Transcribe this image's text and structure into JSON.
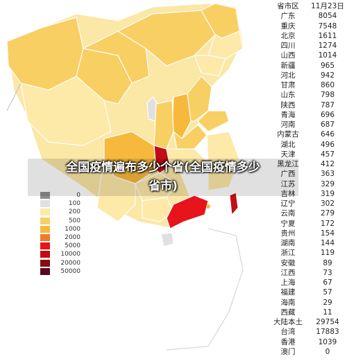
{
  "overlay": {
    "title_line1": "全国疫情遍布多少个省(全国疫情多少",
    "title_line2": "省市)"
  },
  "legend": {
    "items": [
      {
        "label": "0",
        "color": "#8c8c8c"
      },
      {
        "label": "100",
        "color": "#e0e0e0"
      },
      {
        "label": "200",
        "color": "#fde9a8"
      },
      {
        "label": "500",
        "color": "#f7d068"
      },
      {
        "label": "1000",
        "color": "#f6b93b"
      },
      {
        "label": "2000",
        "color": "#ee7d26"
      },
      {
        "label": "5000",
        "color": "#e8141b"
      },
      {
        "label": "10000",
        "color": "#c20d14"
      },
      {
        "label": "20000",
        "color": "#8b0a0f"
      },
      {
        "label": "50000",
        "color": "#5a0621"
      }
    ]
  },
  "table": {
    "header": {
      "name": "省市区",
      "value": "11月23日"
    },
    "rows": [
      {
        "name": "广东",
        "value": "8054"
      },
      {
        "name": "重庆",
        "value": "7548"
      },
      {
        "name": "北京",
        "value": "1611"
      },
      {
        "name": "四川",
        "value": "1274"
      },
      {
        "name": "山西",
        "value": "1014"
      },
      {
        "name": "新疆",
        "value": "965"
      },
      {
        "name": "河北",
        "value": "942"
      },
      {
        "name": "甘肃",
        "value": "860"
      },
      {
        "name": "山东",
        "value": "798"
      },
      {
        "name": "陕西",
        "value": "787"
      },
      {
        "name": "青海",
        "value": "696"
      },
      {
        "name": "河南",
        "value": "687"
      },
      {
        "name": "内蒙古",
        "value": "646"
      },
      {
        "name": "湖北",
        "value": "496"
      },
      {
        "name": "天津",
        "value": "457"
      },
      {
        "name": "黑龙江",
        "value": "412"
      },
      {
        "name": "广西",
        "value": "363"
      },
      {
        "name": "江苏",
        "value": "329"
      },
      {
        "name": "吉林",
        "value": "319"
      },
      {
        "name": "辽宁",
        "value": "302"
      },
      {
        "name": "云南",
        "value": "279"
      },
      {
        "name": "宁夏",
        "value": "172"
      },
      {
        "name": "贵州",
        "value": "154"
      },
      {
        "name": "湖南",
        "value": "144"
      },
      {
        "name": "浙江",
        "value": "119"
      },
      {
        "name": "安徽",
        "value": "89"
      },
      {
        "name": "江西",
        "value": "73"
      },
      {
        "name": "上海",
        "value": "67"
      },
      {
        "name": "福建",
        "value": "57"
      },
      {
        "name": "海南",
        "value": "29"
      },
      {
        "name": "西藏",
        "value": "11"
      },
      {
        "name": "大陆本土",
        "value": "29754"
      },
      {
        "name": "台湾",
        "value": "17883"
      },
      {
        "name": "香港",
        "value": "1039"
      },
      {
        "name": "澳门",
        "value": "0"
      }
    ]
  }
}
